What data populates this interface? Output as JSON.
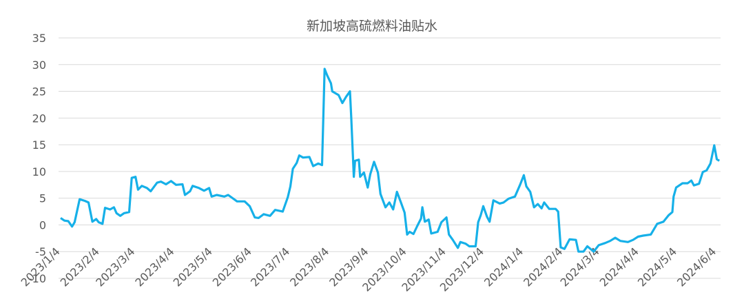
{
  "chart_data": {
    "type": "line",
    "title": "新加坡高硫燃料油贴水",
    "x": [
      "2023/1/4",
      "2023/1/7",
      "2023/1/10",
      "2023/1/13",
      "2023/1/15",
      "2023/1/19",
      "2023/1/23",
      "2023/1/26",
      "2023/1/29",
      "2023/2/1",
      "2023/2/3",
      "2023/2/6",
      "2023/2/8",
      "2023/2/12",
      "2023/2/15",
      "2023/2/17",
      "2023/2/20",
      "2023/2/23",
      "2023/2/27",
      "2023/3/1",
      "2023/3/4",
      "2023/3/6",
      "2023/3/9",
      "2023/3/13",
      "2023/3/16",
      "2023/3/21",
      "2023/3/24",
      "2023/3/28",
      "2023/4/1",
      "2023/4/5",
      "2023/4/10",
      "2023/4/12",
      "2023/4/16",
      "2023/4/18",
      "2023/4/23",
      "2023/4/27",
      "2023/5/1",
      "2023/5/3",
      "2023/5/7",
      "2023/5/13",
      "2023/5/16",
      "2023/5/23",
      "2023/5/29",
      "2023/6/2",
      "2023/6/6",
      "2023/6/9",
      "2023/6/13",
      "2023/6/18",
      "2023/6/22",
      "2023/6/28",
      "2023/7/2",
      "2023/7/4",
      "2023/7/6",
      "2023/7/9",
      "2023/7/11",
      "2023/7/14",
      "2023/7/19",
      "2023/7/22",
      "2023/7/26",
      "2023/7/29",
      "2023/7/31",
      "2023/8/2",
      "2023/8/5",
      "2023/8/6",
      "2023/8/11",
      "2023/8/14",
      "2023/8/17",
      "2023/8/20",
      "2023/8/21",
      "2023/8/23",
      "2023/8/24",
      "2023/8/27",
      "2023/8/28",
      "2023/8/31",
      "2023/9/3",
      "2023/9/5",
      "2023/9/8",
      "2023/9/11",
      "2023/9/13",
      "2023/9/17",
      "2023/9/20",
      "2023/9/23",
      "2023/9/26",
      "2023/9/29",
      "2023/10/2",
      "2023/10/4",
      "2023/10/6",
      "2023/10/9",
      "2023/10/12",
      "2023/10/15",
      "2023/10/16",
      "2023/10/18",
      "2023/10/21",
      "2023/10/23",
      "2023/10/28",
      "2023/10/31",
      "2023/11/4",
      "2023/11/6",
      "2023/11/9",
      "2023/11/13",
      "2023/11/15",
      "2023/11/19",
      "2023/11/22",
      "2023/11/27",
      "2023/11/29",
      "2023/12/1",
      "2023/12/3",
      "2023/12/6",
      "2023/12/8",
      "2023/12/11",
      "2023/12/16",
      "2023/12/19",
      "2023/12/23",
      "2023/12/28",
      "2024/1/1",
      "2024/1/4",
      "2024/1/6",
      "2024/1/9",
      "2024/1/12",
      "2024/1/15",
      "2024/1/18",
      "2024/1/20",
      "2024/1/24",
      "2024/1/29",
      "2024/1/31",
      "2024/2/2",
      "2024/2/5",
      "2024/2/9",
      "2024/2/14",
      "2024/2/16",
      "2024/2/20",
      "2024/2/23",
      "2024/2/28",
      "2024/3/3",
      "2024/3/8",
      "2024/3/12",
      "2024/3/16",
      "2024/3/20",
      "2024/3/26",
      "2024/3/30",
      "2024/4/3",
      "2024/4/7",
      "2024/4/13",
      "2024/4/18",
      "2024/4/23",
      "2024/4/27",
      "2024/4/30",
      "2024/5/1",
      "2024/5/3",
      "2024/5/8",
      "2024/5/12",
      "2024/5/15",
      "2024/5/17",
      "2024/5/21",
      "2024/5/24",
      "2024/5/27",
      "2024/5/30",
      "2024/6/2",
      "2024/6/4",
      "2024/6/6"
    ],
    "series": [
      {
        "name": "新加坡高硫燃料油贴水",
        "color": "#16b0e8",
        "values": [
          1.3,
          0.8,
          0.7,
          -0.3,
          0.5,
          4.8,
          4.5,
          4.2,
          0.6,
          1.1,
          0.5,
          0.2,
          3.2,
          2.9,
          3.3,
          2.2,
          1.7,
          2.2,
          2.4,
          8.8,
          9.0,
          6.6,
          7.3,
          6.9,
          6.3,
          7.9,
          8.1,
          7.6,
          8.2,
          7.5,
          7.6,
          5.6,
          6.3,
          7.3,
          6.9,
          6.4,
          6.9,
          5.3,
          5.6,
          5.3,
          5.6,
          4.4,
          4.4,
          3.5,
          1.4,
          1.3,
          2.0,
          1.7,
          2.8,
          2.5,
          5.2,
          7.2,
          10.5,
          11.6,
          13.0,
          12.6,
          12.7,
          11.0,
          11.5,
          11.2,
          29.2,
          28.0,
          26.5,
          25.0,
          24.3,
          22.8,
          24.0,
          25.0,
          20.0,
          9.0,
          12.0,
          12.2,
          9.0,
          9.8,
          7.0,
          9.5,
          11.8,
          9.8,
          5.8,
          3.3,
          4.2,
          2.9,
          6.2,
          4.3,
          2.3,
          -1.8,
          -1.3,
          -1.7,
          -0.2,
          1.2,
          3.3,
          0.6,
          1.0,
          -1.6,
          -1.3,
          0.5,
          1.4,
          -1.8,
          -2.8,
          -4.3,
          -3.2,
          -3.5,
          -4.0,
          -4.0,
          0.5,
          1.8,
          3.5,
          1.5,
          0.6,
          4.6,
          4.0,
          4.2,
          4.9,
          5.3,
          7.5,
          9.3,
          7.2,
          6.2,
          3.3,
          3.9,
          3.1,
          4.2,
          3.0,
          3.0,
          2.5,
          -4.2,
          -4.5,
          -2.7,
          -2.8,
          -5.0,
          -5.0,
          -4.0,
          -5.0,
          -3.8,
          -3.4,
          -3.0,
          -2.4,
          -3.0,
          -3.2,
          -2.8,
          -2.2,
          -2.0,
          -1.8,
          0.2,
          0.6,
          1.8,
          2.4,
          5.3,
          7.0,
          7.8,
          7.8,
          8.3,
          7.4,
          7.7,
          9.9,
          10.2,
          11.5,
          14.9,
          12.3,
          12.0
        ]
      }
    ],
    "xlim": [
      "2023/1/4",
      "2024/6/7"
    ],
    "xticks": [
      "2023/1/4",
      "2023/2/4",
      "2023/3/4",
      "2023/4/4",
      "2023/5/4",
      "2023/6/4",
      "2023/7/4",
      "2023/8/4",
      "2023/9/4",
      "2023/10/4",
      "2023/11/4",
      "2023/12/4",
      "2024/1/4",
      "2024/2/4",
      "2024/3/4",
      "2024/4/4",
      "2024/5/4",
      "2024/6/4"
    ],
    "ylim": [
      -10,
      35
    ],
    "yticks": [
      35,
      30,
      25,
      20,
      15,
      10,
      5,
      0,
      -5,
      -10
    ],
    "grid": true
  }
}
